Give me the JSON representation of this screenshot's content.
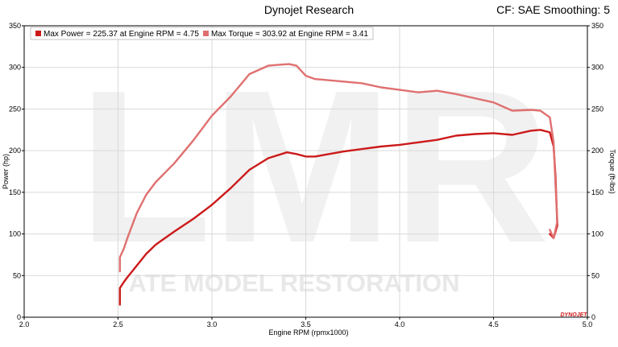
{
  "header": {
    "title": "Dynojet Research",
    "settings": "CF: SAE Smoothing: 5"
  },
  "watermark": {
    "text": "ATE MODEL RESTORATION",
    "logo_letters": "LMR",
    "brand": "DYNOJET"
  },
  "colors": {
    "power": "#cc1a1a",
    "torque": "#e07070",
    "grid": "#d9d9d9"
  },
  "chart_data": {
    "type": "line",
    "xlabel": "Engine RPM (rpmx1000)",
    "ylabel_left": "Power (hp)",
    "ylabel_right": "Torque (ft-lbs)",
    "xlim": [
      2.0,
      5.0
    ],
    "ylim": [
      0,
      350
    ],
    "x_ticks": [
      "2.0",
      "2.5",
      "3.0",
      "3.5",
      "4.0",
      "4.5",
      "5.0"
    ],
    "y_ticks": [
      "0",
      "50",
      "100",
      "150",
      "200",
      "250",
      "300",
      "350"
    ],
    "legend": [
      "Max Power = 225.37 at Engine RPM = 4.75",
      "Max Torque = 303.92 at Engine RPM = 3.41"
    ],
    "grid": true,
    "legend_position": "top-left",
    "series": [
      {
        "name": "Max Power = 225.37 at Engine RPM = 4.75",
        "axis": "left",
        "x": [
          2.51,
          2.51,
          2.53,
          2.55,
          2.6,
          2.65,
          2.7,
          2.8,
          2.9,
          3.0,
          3.1,
          3.2,
          3.3,
          3.4,
          3.45,
          3.5,
          3.55,
          3.6,
          3.7,
          3.8,
          3.9,
          4.0,
          4.1,
          4.2,
          4.3,
          4.4,
          4.5,
          4.6,
          4.7,
          4.75,
          4.8,
          4.82,
          4.83,
          4.84,
          4.82,
          4.8
        ],
        "y": [
          15,
          35,
          42,
          48,
          62,
          76,
          87,
          103,
          118,
          135,
          155,
          177,
          191,
          198,
          196,
          193,
          193,
          195,
          199,
          202,
          205,
          207,
          210,
          213,
          218,
          220,
          221,
          219,
          224,
          225,
          222,
          205,
          170,
          110,
          95,
          100
        ]
      },
      {
        "name": "Max Torque = 303.92 at Engine RPM = 3.41",
        "axis": "right",
        "x": [
          2.51,
          2.51,
          2.53,
          2.55,
          2.6,
          2.65,
          2.7,
          2.8,
          2.9,
          3.0,
          3.1,
          3.2,
          3.3,
          3.35,
          3.41,
          3.45,
          3.5,
          3.55,
          3.6,
          3.7,
          3.8,
          3.9,
          4.0,
          4.1,
          4.2,
          4.3,
          4.4,
          4.5,
          4.6,
          4.7,
          4.75,
          4.8,
          4.82,
          4.83,
          4.84,
          4.82,
          4.8
        ],
        "y": [
          55,
          72,
          82,
          95,
          125,
          147,
          162,
          185,
          212,
          242,
          265,
          292,
          302,
          303,
          304,
          302,
          290,
          286,
          285,
          283,
          281,
          276,
          273,
          270,
          272,
          268,
          263,
          258,
          248,
          249,
          248,
          240,
          210,
          160,
          115,
          95,
          105
        ]
      }
    ]
  }
}
